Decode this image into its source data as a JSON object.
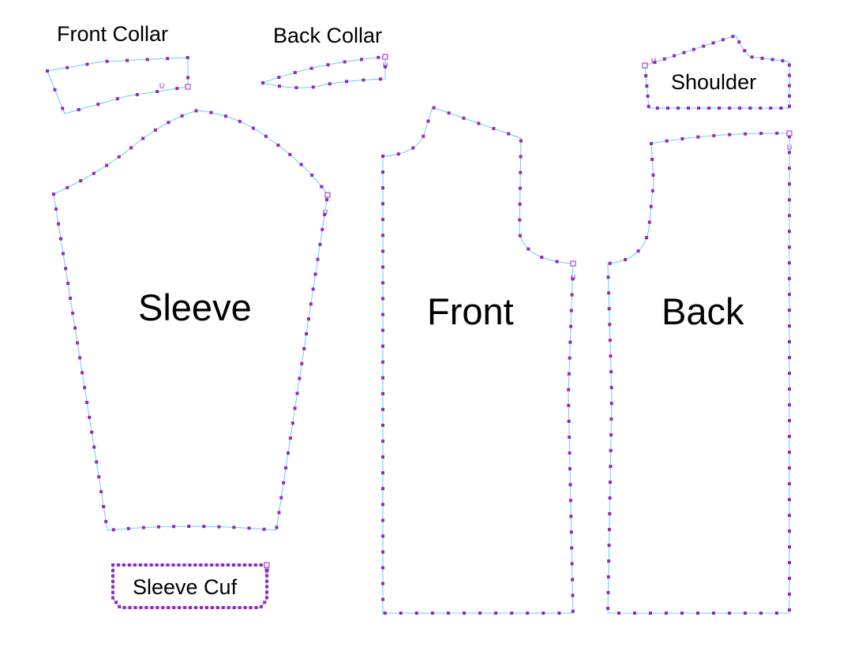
{
  "colors": {
    "outline": "#5fd3f0",
    "vertex": "#a020c8",
    "text": "#000000"
  },
  "pieces": {
    "front_collar": {
      "label": "Front Collar"
    },
    "back_collar": {
      "label": "Back Collar"
    },
    "shoulder": {
      "label": "Shoulder"
    },
    "sleeve": {
      "label": "Sleeve"
    },
    "sleeve_cuff": {
      "label": "Sleeve Cuf"
    },
    "front": {
      "label": "Front"
    },
    "back": {
      "label": "Back"
    }
  },
  "marker_glyph": "U"
}
